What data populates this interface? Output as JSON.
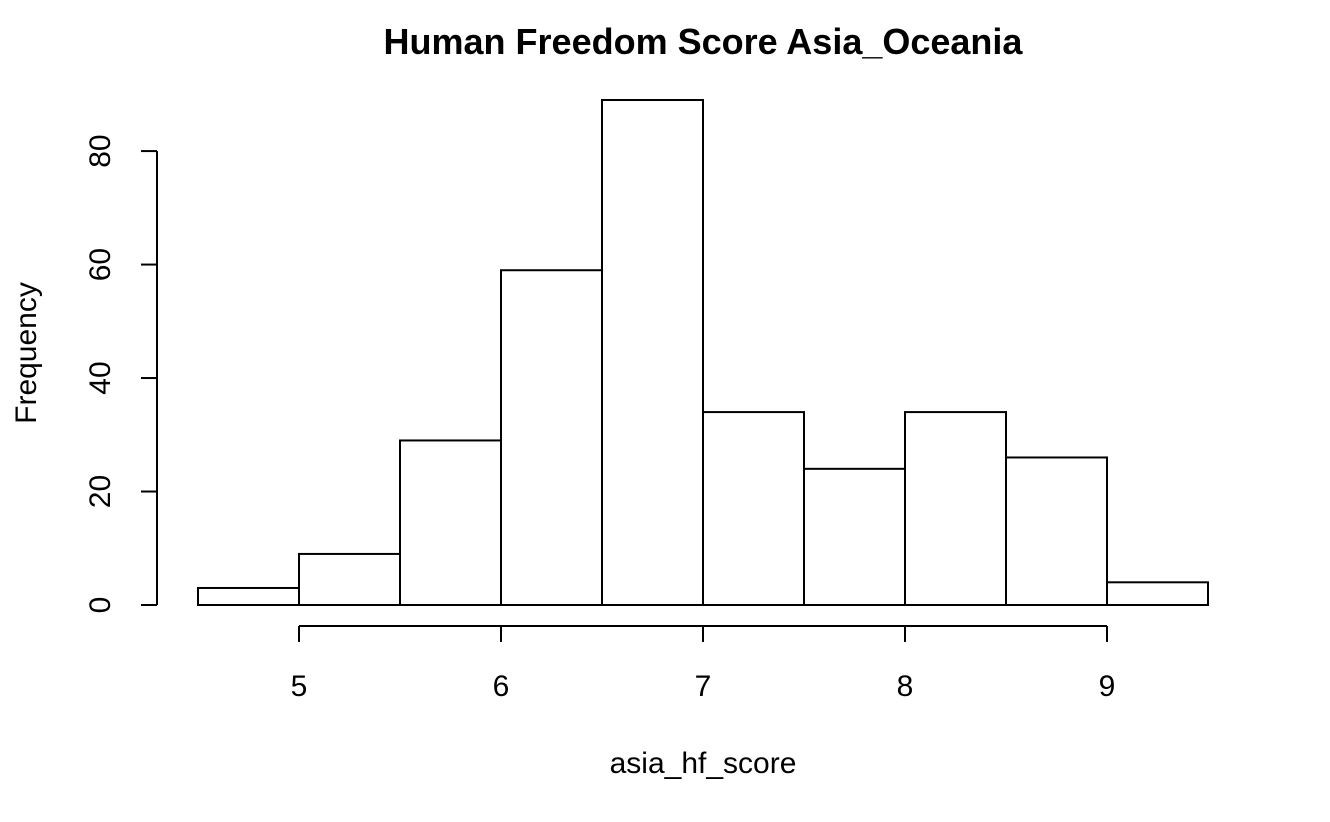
{
  "chart_data": {
    "type": "bar",
    "title": "Human Freedom Score Asia_Oceania",
    "xlabel": "asia_hf_score",
    "ylabel": "Frequency",
    "bin_edges": [
      4.5,
      5.0,
      5.5,
      6.0,
      6.5,
      7.0,
      7.5,
      8.0,
      8.5,
      9.0,
      9.5
    ],
    "categories": [
      "4.5-5.0",
      "5.0-5.5",
      "5.5-6.0",
      "6.0-6.5",
      "6.5-7.0",
      "7.0-7.5",
      "7.5-8.0",
      "8.0-8.5",
      "8.5-9.0",
      "9.0-9.5"
    ],
    "values": [
      3,
      9,
      29,
      59,
      89,
      34,
      24,
      34,
      26,
      4
    ],
    "x_ticks": [
      "5",
      "6",
      "7",
      "8",
      "9"
    ],
    "x_tick_values": [
      5,
      6,
      7,
      8,
      9
    ],
    "y_ticks": [
      "0",
      "20",
      "40",
      "60",
      "80"
    ],
    "y_tick_values": [
      0,
      20,
      40,
      60,
      80
    ],
    "xlim": [
      4.5,
      9.5
    ],
    "ylim": [
      0,
      89
    ],
    "grid": false,
    "legend": false,
    "colors": {
      "bar_fill": "#ffffff",
      "bar_stroke": "#000000"
    }
  }
}
